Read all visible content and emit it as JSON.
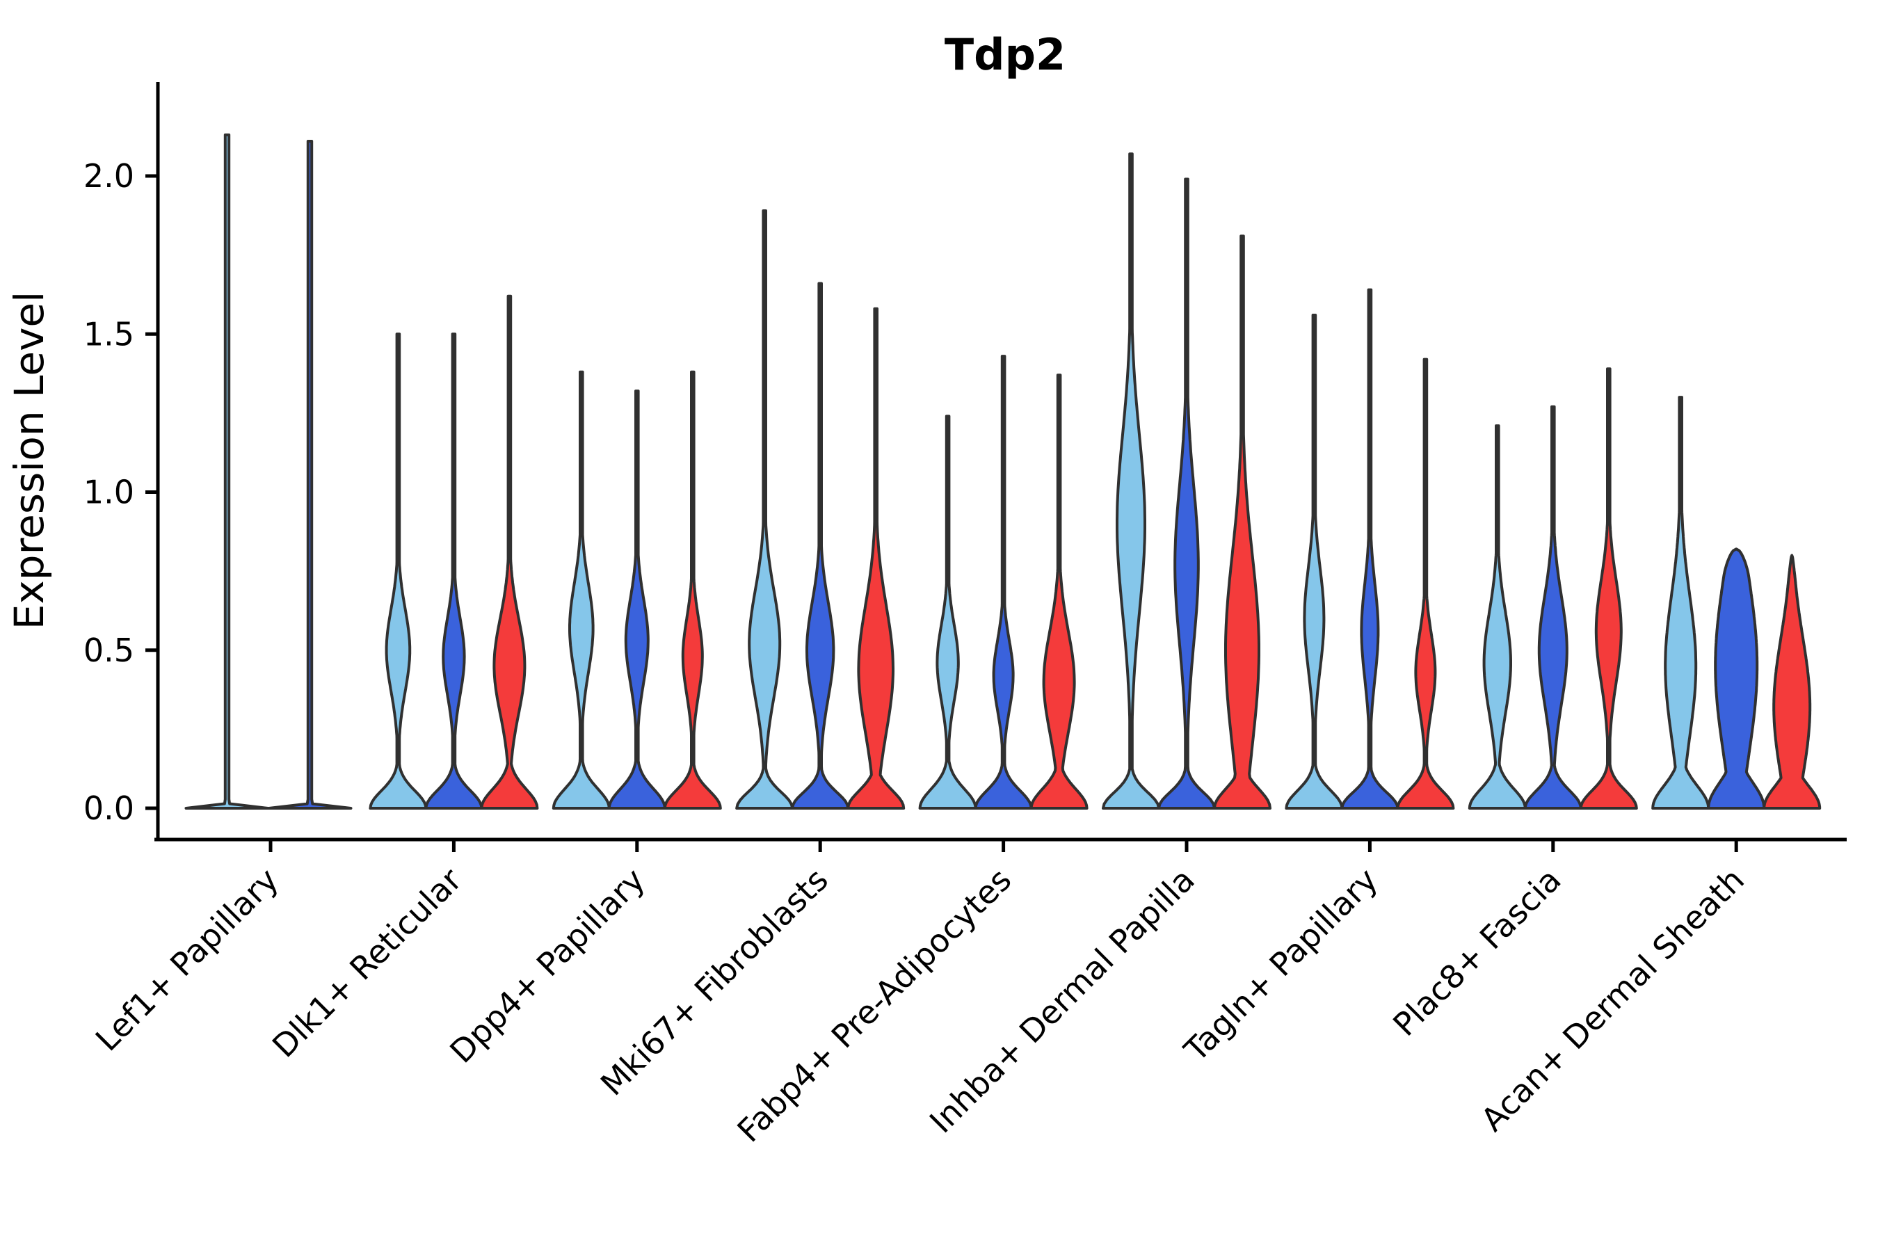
{
  "chart_data": {
    "type": "violin",
    "title": "Tdp2",
    "xlabel": "",
    "ylabel": "Expression Level",
    "yticks": [
      0.0,
      0.5,
      1.0,
      1.5,
      2.0
    ],
    "ytick_labels": [
      "0.0",
      "0.5",
      "1.0",
      "1.5",
      "2.0"
    ],
    "ylim": [
      -0.1,
      2.3
    ],
    "grid": false,
    "legend": "none",
    "outline_color": "#303030",
    "categories": [
      "Lef1+ Papillary",
      "Dlk1+ Reticular",
      "Dpp4+ Papillary",
      "Mki67+ Fibroblasts",
      "Fabp4+ Pre-Adipocytes",
      "Inhba+ Dermal Papilla",
      "Tagln+ Papillary",
      "Plac8+ Fascia",
      "Acan+ Dermal Sheath"
    ],
    "series": [
      {
        "name": "light_blue",
        "color": "#85C6EA",
        "max_values": [
          2.13,
          1.5,
          1.38,
          1.89,
          1.24,
          2.07,
          1.56,
          1.21,
          1.3
        ]
      },
      {
        "name": "dark_blue",
        "color": "#3A62DC",
        "max_values": [
          2.11,
          1.5,
          1.32,
          1.66,
          1.43,
          1.99,
          1.64,
          1.27,
          0.82
        ]
      },
      {
        "name": "red",
        "color": "#F43B3B",
        "max_values": [
          null,
          1.62,
          1.38,
          1.58,
          1.37,
          1.81,
          1.42,
          1.39,
          0.8
        ]
      }
    ],
    "violins": [
      {
        "category": "Lef1+ Papillary",
        "items": [
          {
            "s": 0,
            "max": 2.13,
            "ba": 0,
            "bc": 0,
            "bs": 1,
            "base": 0.006
          },
          {
            "s": 1,
            "max": 2.11,
            "ba": 0,
            "bc": 0,
            "bs": 1,
            "base": 0.006
          }
        ]
      },
      {
        "category": "Dlk1+ Reticular",
        "items": [
          {
            "s": 0,
            "max": 1.5,
            "ba": 0.42,
            "bc": 0.5,
            "bs": 0.13,
            "base": 0.055
          },
          {
            "s": 1,
            "max": 1.5,
            "ba": 0.38,
            "bc": 0.48,
            "bs": 0.12,
            "base": 0.055
          },
          {
            "s": 2,
            "max": 1.62,
            "ba": 0.55,
            "bc": 0.45,
            "bs": 0.15,
            "base": 0.06
          }
        ]
      },
      {
        "category": "Dpp4+ Papillary",
        "items": [
          {
            "s": 0,
            "max": 1.38,
            "ba": 0.42,
            "bc": 0.57,
            "bs": 0.14,
            "base": 0.06
          },
          {
            "s": 1,
            "max": 1.32,
            "ba": 0.4,
            "bc": 0.53,
            "bs": 0.13,
            "base": 0.06
          },
          {
            "s": 2,
            "max": 1.38,
            "ba": 0.35,
            "bc": 0.48,
            "bs": 0.12,
            "base": 0.055
          }
        ]
      },
      {
        "category": "Mki67+ Fibroblasts",
        "items": [
          {
            "s": 0,
            "max": 1.89,
            "ba": 0.55,
            "bc": 0.52,
            "bs": 0.17,
            "base": 0.05
          },
          {
            "s": 1,
            "max": 1.66,
            "ba": 0.48,
            "bc": 0.5,
            "bs": 0.15,
            "base": 0.05
          },
          {
            "s": 2,
            "max": 1.58,
            "ba": 0.62,
            "bc": 0.44,
            "bs": 0.2,
            "base": 0.055
          }
        ]
      },
      {
        "category": "Fabp4+ Pre-Adipocytes",
        "items": [
          {
            "s": 0,
            "max": 1.24,
            "ba": 0.38,
            "bc": 0.46,
            "bs": 0.12,
            "base": 0.06
          },
          {
            "s": 1,
            "max": 1.43,
            "ba": 0.35,
            "bc": 0.42,
            "bs": 0.11,
            "base": 0.055
          },
          {
            "s": 2,
            "max": 1.37,
            "ba": 0.55,
            "bc": 0.4,
            "bs": 0.16,
            "base": 0.06
          }
        ]
      },
      {
        "category": "Inhba+ Dermal Papilla",
        "items": [
          {
            "s": 0,
            "max": 2.07,
            "ba": 0.5,
            "bc": 0.9,
            "bs": 0.28,
            "base": 0.05
          },
          {
            "s": 1,
            "max": 1.99,
            "ba": 0.42,
            "bc": 0.77,
            "bs": 0.25,
            "base": 0.05
          },
          {
            "s": 2,
            "max": 1.81,
            "ba": 0.6,
            "bc": 0.5,
            "bs": 0.3,
            "base": 0.06
          }
        ]
      },
      {
        "category": "Tagln+ Papillary",
        "items": [
          {
            "s": 0,
            "max": 1.56,
            "ba": 0.35,
            "bc": 0.6,
            "bs": 0.16,
            "base": 0.055
          },
          {
            "s": 1,
            "max": 1.64,
            "ba": 0.3,
            "bc": 0.56,
            "bs": 0.15,
            "base": 0.05
          },
          {
            "s": 2,
            "max": 1.42,
            "ba": 0.35,
            "bc": 0.43,
            "bs": 0.12,
            "base": 0.055
          }
        ]
      },
      {
        "category": "Plac8+ Fascia",
        "items": [
          {
            "s": 0,
            "max": 1.21,
            "ba": 0.48,
            "bc": 0.46,
            "bs": 0.16,
            "base": 0.06
          },
          {
            "s": 1,
            "max": 1.27,
            "ba": 0.5,
            "bc": 0.5,
            "bs": 0.17,
            "base": 0.055
          },
          {
            "s": 2,
            "max": 1.39,
            "ba": 0.45,
            "bc": 0.56,
            "bs": 0.16,
            "base": 0.055
          }
        ]
      },
      {
        "category": "Acan+ Dermal Sheath",
        "items": [
          {
            "s": 0,
            "max": 1.3,
            "ba": 0.55,
            "bc": 0.45,
            "bs": 0.22,
            "base": 0.07
          },
          {
            "s": 1,
            "max": 0.82,
            "ba": 0.75,
            "bc": 0.45,
            "bs": 0.28,
            "base": 0.08,
            "blunt": true
          },
          {
            "s": 2,
            "max": 0.8,
            "ba": 0.65,
            "bc": 0.32,
            "bs": 0.22,
            "base": 0.07,
            "blunt": true
          }
        ]
      }
    ]
  }
}
